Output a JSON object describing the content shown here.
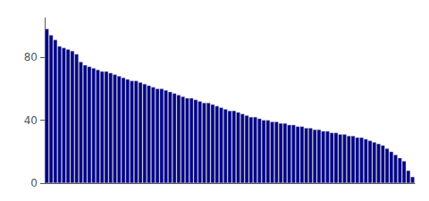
{
  "chart_data": {
    "type": "bar",
    "categories": [
      null,
      null,
      null,
      null,
      null,
      null,
      null,
      null,
      null,
      null,
      null,
      null,
      null,
      null,
      null,
      null,
      null,
      null,
      null,
      null,
      null,
      null,
      null,
      null,
      null,
      null,
      null,
      null,
      null,
      null,
      null,
      null,
      null,
      null,
      null,
      null,
      null,
      null,
      null,
      null,
      null,
      null,
      null,
      null,
      null,
      null,
      null,
      null,
      null,
      null,
      null,
      null,
      null,
      null,
      null,
      null,
      null,
      null,
      null,
      null,
      null,
      null,
      null,
      null,
      null,
      null,
      null,
      null,
      null,
      null,
      null,
      null,
      null,
      null,
      null,
      null,
      null,
      null,
      null,
      null,
      null,
      null,
      null,
      null,
      null,
      null,
      null
    ],
    "values": [
      98,
      94,
      91,
      87,
      86,
      85,
      84,
      82,
      77,
      75,
      74,
      73,
      72,
      71,
      71,
      70,
      69,
      68,
      67,
      66,
      65,
      65,
      64,
      63,
      62,
      61,
      60,
      60,
      59,
      58,
      57,
      56,
      55,
      54,
      54,
      53,
      52,
      51,
      51,
      50,
      49,
      48,
      47,
      46,
      46,
      45,
      44,
      43,
      42,
      42,
      41,
      40,
      40,
      39,
      39,
      38,
      38,
      37,
      37,
      36,
      36,
      35,
      35,
      34,
      34,
      33,
      33,
      32,
      32,
      31,
      31,
      30,
      30,
      29,
      29,
      28,
      27,
      26,
      25,
      24,
      22,
      20,
      18,
      16,
      14,
      8,
      4
    ],
    "color": "#00008B",
    "ylim": [
      0,
      105
    ],
    "yticks": [
      0,
      40,
      80
    ],
    "grid": false,
    "tick_labels": "y"
  }
}
